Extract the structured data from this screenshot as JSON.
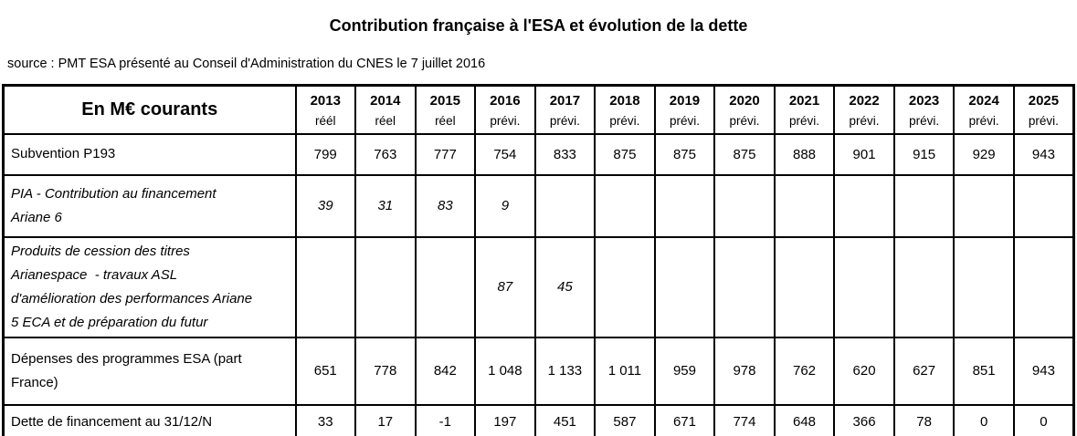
{
  "title": "Contribution française à l'ESA et évolution de la dette",
  "source_line": "source : PMT ESA présenté au Conseil d'Administration du CNES le 7 juillet 2016",
  "chart_data": {
    "type": "table",
    "unit_label": "En M€ courants",
    "columns": [
      {
        "year": "2013",
        "status": "réél"
      },
      {
        "year": "2014",
        "status": "réel"
      },
      {
        "year": "2015",
        "status": "réel"
      },
      {
        "year": "2016",
        "status": "prévi."
      },
      {
        "year": "2017",
        "status": "prévi."
      },
      {
        "year": "2018",
        "status": "prévi."
      },
      {
        "year": "2019",
        "status": "prévi."
      },
      {
        "year": "2020",
        "status": "prévi."
      },
      {
        "year": "2021",
        "status": "prévi."
      },
      {
        "year": "2022",
        "status": "prévi."
      },
      {
        "year": "2023",
        "status": "prévi."
      },
      {
        "year": "2024",
        "status": "prévi."
      },
      {
        "year": "2025",
        "status": "prévi."
      }
    ],
    "rows": [
      {
        "label": "Subvention P193",
        "style": "regular",
        "values": [
          "799",
          "763",
          "777",
          "754",
          "833",
          "875",
          "875",
          "875",
          "888",
          "901",
          "915",
          "929",
          "943"
        ]
      },
      {
        "label": "PIA - Contribution au financement\nAriane 6",
        "style": "italic",
        "values": [
          "39",
          "31",
          "83",
          "9",
          "",
          "",
          "",
          "",
          "",
          "",
          "",
          "",
          ""
        ]
      },
      {
        "label": "Produits de cession des titres\nArianespace  - travaux ASL\nd'amélioration des performances Ariane\n5 ECA et de préparation du futur",
        "style": "italic",
        "values": [
          "",
          "",
          "",
          "87",
          "45",
          "",
          "",
          "",
          "",
          "",
          "",
          "",
          ""
        ]
      },
      {
        "label": "Dépenses des programmes ESA (part\nFrance)",
        "style": "regular",
        "values": [
          "651",
          "778",
          "842",
          "1 048",
          "1 133",
          "1 011",
          "959",
          "978",
          "762",
          "620",
          "627",
          "851",
          "943"
        ]
      },
      {
        "label": "Dette de financement au 31/12/N",
        "style": "regular",
        "values": [
          "33",
          "17",
          "-1",
          "197",
          "451",
          "587",
          "671",
          "774",
          "648",
          "366",
          "78",
          "0",
          "0"
        ]
      }
    ]
  }
}
